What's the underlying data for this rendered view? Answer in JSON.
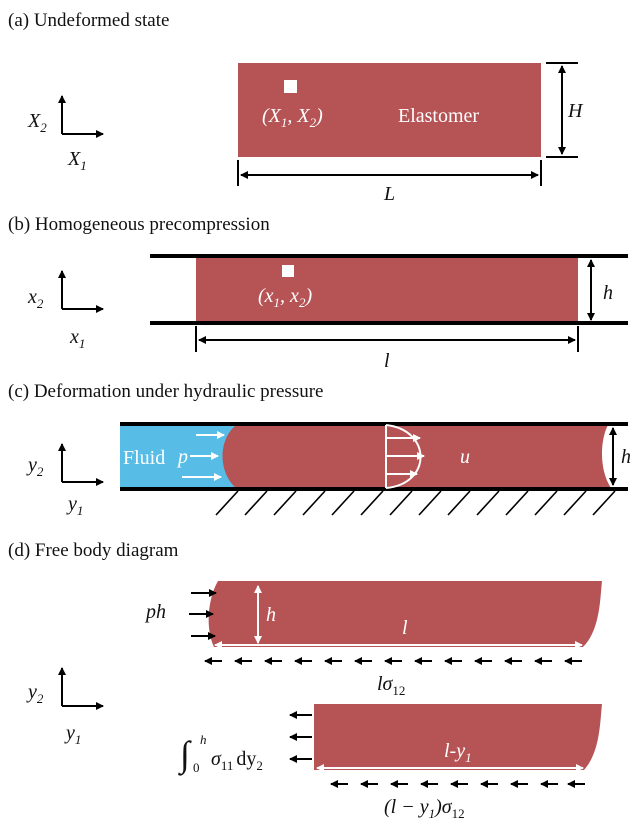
{
  "colors": {
    "elastomer": "#b65355",
    "fluid": "#58bde6",
    "ink": "#000000",
    "white": "#ffffff"
  },
  "panel_a": {
    "caption": "(a) Undeformed state",
    "axis_x_main": "X",
    "axis_x_sub": "1",
    "axis_y_main": "X",
    "axis_y_sub": "2",
    "point_label": "(X",
    "point_sub1": "1",
    "point_mid": ", X",
    "point_sub2": "2",
    "point_close": ")",
    "material": "Elastomer",
    "height": "H",
    "length": "L"
  },
  "panel_b": {
    "caption": "(b) Homogeneous precompression",
    "axis_x_main": "x",
    "axis_x_sub": "1",
    "axis_y_main": "x",
    "axis_y_sub": "2",
    "point_label": "(x",
    "point_sub1": "1",
    "point_mid": ", x",
    "point_sub2": "2",
    "point_close": ")",
    "height": "h",
    "length": "l"
  },
  "panel_c": {
    "caption": "(c) Deformation under hydraulic pressure",
    "axis_x_main": "y",
    "axis_x_sub": "1",
    "axis_y_main": "y",
    "axis_y_sub": "2",
    "fluid": "Fluid",
    "pressure": "p",
    "displacement": "u",
    "height": "h"
  },
  "panel_d": {
    "caption": "(d) Free body diagram",
    "axis_x_main": "y",
    "axis_x_sub": "1",
    "axis_y_main": "y",
    "axis_y_sub": "2",
    "top_force": "ph",
    "top_height": "h",
    "top_length": "l",
    "top_shear_main": "lσ",
    "top_shear_sub": "12",
    "int_upper": "h",
    "int_lower": "0",
    "int_symbol": "∫",
    "int_body": "σ",
    "int_body_sub": "11",
    "int_d": "dy",
    "int_d_sub": "2",
    "bottom_length": "l-y",
    "bottom_length_sub": "1",
    "bottom_shear_main": "(l − y",
    "bottom_shear_sub1": "1",
    "bottom_shear_close": ")σ",
    "bottom_shear_sub2": "12"
  }
}
